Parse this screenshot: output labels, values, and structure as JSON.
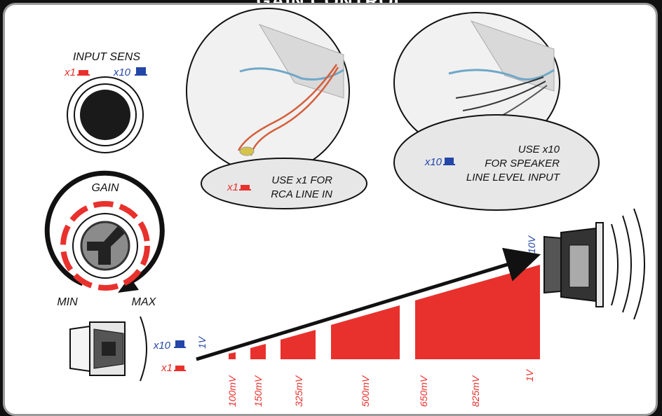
{
  "title": "GAIN CONTROL",
  "input_sens": {
    "label": "INPUT SENS",
    "x1_label": "x1",
    "x10_label": "x10"
  },
  "gain": {
    "label": "GAIN",
    "min_label": "MIN",
    "max_label": "MAX"
  },
  "callouts": {
    "rca": {
      "badge": "x1",
      "line1": "USE x1 FOR",
      "line2": "RCA LINE IN"
    },
    "speaker": {
      "badge": "x10",
      "line1": "USE x10",
      "line2": "FOR SPEAKER",
      "line3": "LINE LEVEL INPUT"
    }
  },
  "ramp": {
    "start_x10": "x10",
    "start_x1": "x1",
    "start_level": "1V",
    "end_level": "10V",
    "levels": [
      "100mV",
      "150mV",
      "325mV",
      "500mV",
      "650mV",
      "825mV",
      "1V"
    ]
  },
  "colors": {
    "red": "#e8312d",
    "blue": "#2346a8",
    "black": "#111111"
  },
  "icons": [
    "x1-switch-icon",
    "x10-switch-icon",
    "sens-knob-icon",
    "gain-knob-icon",
    "subwoofer-icon",
    "sound-wave-icon",
    "arrow-icon"
  ]
}
